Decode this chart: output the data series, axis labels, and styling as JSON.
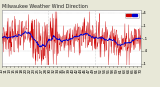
{
  "title_left": "Milwaukee Weather Wind Direction",
  "bg_color": "#e8e8d8",
  "plot_bg_color": "#ffffff",
  "ylim": [
    -1.1,
    1.1
  ],
  "ytick_values": [
    -1.0,
    -0.5,
    0.0,
    0.5,
    1.0
  ],
  "ytick_labels": [
    "-1",
    "-.4",
    "-.1",
    ".1",
    ".4"
  ],
  "n_points": 500,
  "red_color": "#cc0000",
  "blue_color": "#0000cc",
  "grid_color": "#b0b0b0",
  "title_fontsize": 3.5,
  "tick_fontsize": 2.8,
  "legend_fontsize": 3.0,
  "n_vgrid": 2,
  "n_xticks": 36
}
